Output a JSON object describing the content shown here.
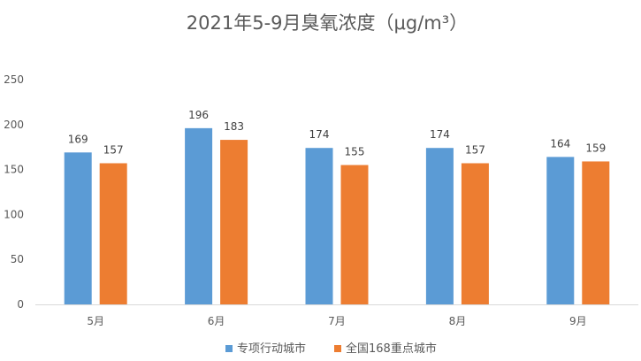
{
  "chart_data": {
    "type": "bar",
    "title": "2021年5-9月臭氧浓度（μg/m³）",
    "xlabel": "",
    "ylabel": "",
    "categories": [
      "5月",
      "6月",
      "7月",
      "8月",
      "9月"
    ],
    "series": [
      {
        "name": "专项行动城市",
        "color": "#5B9BD5",
        "values": [
          169,
          196,
          174,
          174,
          164
        ]
      },
      {
        "name": "全国168重点城市",
        "color": "#ED7D31",
        "values": [
          157,
          183,
          155,
          157,
          159
        ]
      }
    ],
    "ylim": [
      0,
      250
    ],
    "yticks": [
      0,
      50,
      100,
      150,
      200,
      250
    ],
    "grid": false,
    "legend_position": "bottom",
    "data_labels": true
  }
}
